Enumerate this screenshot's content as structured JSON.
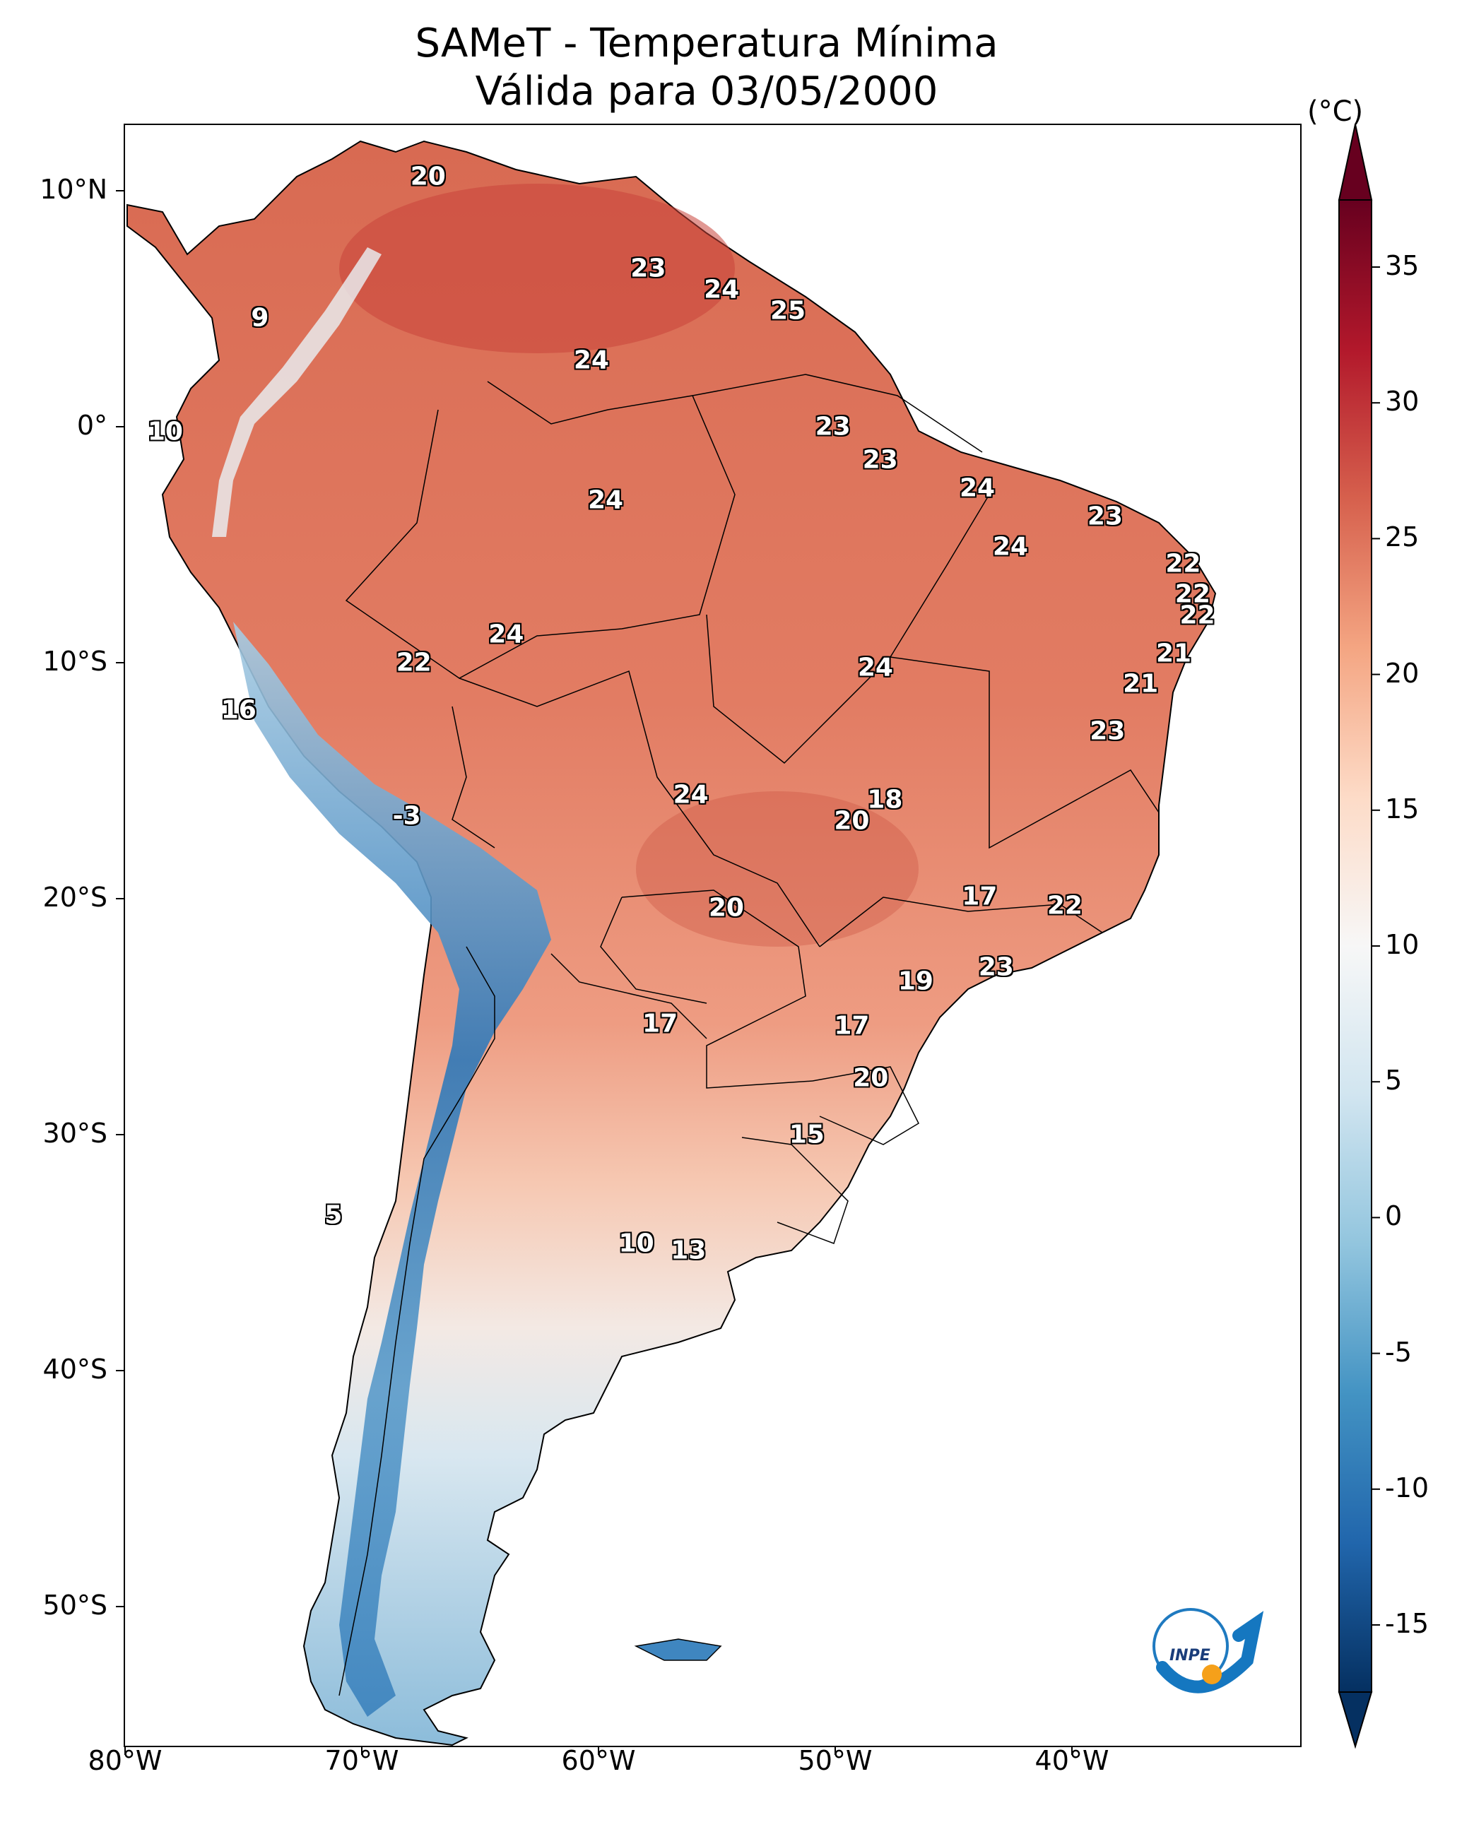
{
  "title_line1": "SAMeT - Temperatura Mínima",
  "title_line2": "Válida para 03/05/2000",
  "colorbar": {
    "unit": "(°C)",
    "range": [
      -17,
      37
    ],
    "ticks": [
      "35",
      "30",
      "25",
      "20",
      "15",
      "10",
      "5",
      "0",
      "-5",
      "-10",
      "-15"
    ],
    "colors": [
      "#053061",
      "#2166ac",
      "#4393c3",
      "#92c5de",
      "#d1e5f0",
      "#f7f7f7",
      "#fddbc7",
      "#f4a582",
      "#d6604d",
      "#b2182b",
      "#67001f"
    ]
  },
  "axes": {
    "lon_ticks": [
      "80°W",
      "70°W",
      "60°W",
      "50°W",
      "40°W"
    ],
    "lat_ticks": [
      "10°N",
      "0°",
      "10°S",
      "20°S",
      "30°S",
      "40°S",
      "50°S"
    ]
  },
  "station_values": [
    {
      "text": "20",
      "lon": -67.2,
      "lat": 10.6
    },
    {
      "text": "9",
      "lon": -74.3,
      "lat": 4.6
    },
    {
      "text": "10",
      "lon": -78.3,
      "lat": -0.2
    },
    {
      "text": "23",
      "lon": -57.9,
      "lat": 6.7
    },
    {
      "text": "24",
      "lon": -54.8,
      "lat": 5.8
    },
    {
      "text": "25",
      "lon": -52.0,
      "lat": 4.9
    },
    {
      "text": "24",
      "lon": -60.3,
      "lat": 2.8
    },
    {
      "text": "23",
      "lon": -50.1,
      "lat": 0.0
    },
    {
      "text": "23",
      "lon": -48.1,
      "lat": -1.4
    },
    {
      "text": "24",
      "lon": -59.7,
      "lat": -3.1
    },
    {
      "text": "24",
      "lon": -44.0,
      "lat": -2.6
    },
    {
      "text": "23",
      "lon": -38.6,
      "lat": -3.8
    },
    {
      "text": "24",
      "lon": -42.6,
      "lat": -5.1
    },
    {
      "text": "22",
      "lon": -35.3,
      "lat": -5.8
    },
    {
      "text": "22",
      "lon": -34.9,
      "lat": -7.1
    },
    {
      "text": "22",
      "lon": -34.7,
      "lat": -8.0
    },
    {
      "text": "21",
      "lon": -35.7,
      "lat": -9.6
    },
    {
      "text": "21",
      "lon": -37.1,
      "lat": -10.9
    },
    {
      "text": "24",
      "lon": -63.9,
      "lat": -8.8
    },
    {
      "text": "22",
      "lon": -67.8,
      "lat": -10.0
    },
    {
      "text": "16",
      "lon": -75.2,
      "lat": -12.0
    },
    {
      "text": "24",
      "lon": -48.3,
      "lat": -10.2
    },
    {
      "text": "23",
      "lon": -38.5,
      "lat": -12.9
    },
    {
      "text": "-3",
      "lon": -68.1,
      "lat": -16.5
    },
    {
      "text": "24",
      "lon": -56.1,
      "lat": -15.6
    },
    {
      "text": "18",
      "lon": -47.9,
      "lat": -15.8
    },
    {
      "text": "20",
      "lon": -49.3,
      "lat": -16.7
    },
    {
      "text": "17",
      "lon": -43.9,
      "lat": -19.9
    },
    {
      "text": "22",
      "lon": -40.3,
      "lat": -20.3
    },
    {
      "text": "20",
      "lon": -54.6,
      "lat": -20.4
    },
    {
      "text": "23",
      "lon": -43.2,
      "lat": -22.9
    },
    {
      "text": "19",
      "lon": -46.6,
      "lat": -23.5
    },
    {
      "text": "17",
      "lon": -57.4,
      "lat": -25.3
    },
    {
      "text": "17",
      "lon": -49.3,
      "lat": -25.4
    },
    {
      "text": "20",
      "lon": -48.5,
      "lat": -27.6
    },
    {
      "text": "15",
      "lon": -51.2,
      "lat": -30.0
    },
    {
      "text": "5",
      "lon": -71.2,
      "lat": -33.4
    },
    {
      "text": "10",
      "lon": -58.4,
      "lat": -34.6
    },
    {
      "text": "13",
      "lon": -56.2,
      "lat": -34.9
    }
  ],
  "logo_text": "INPE"
}
